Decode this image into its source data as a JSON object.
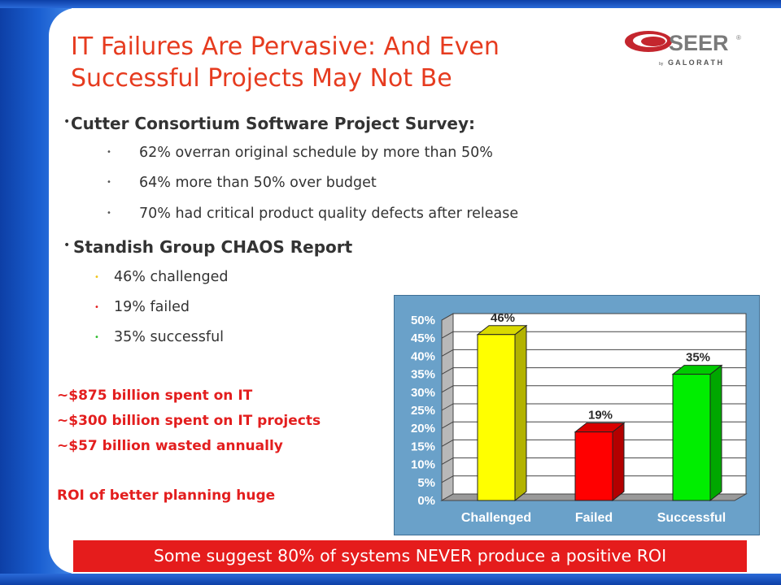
{
  "slide": {
    "title_line1": "IT Failures Are Pervasive: And Even",
    "title_line2": "Successful Projects May Not Be",
    "logo": {
      "name": "SEER",
      "reg": "®",
      "by": "by",
      "company": "G A L O R A T H"
    }
  },
  "cutter": {
    "heading": "Cutter Consortium Software Project Survey:",
    "items": [
      "62% overran original schedule by more than 50%",
      "64% more than 50% over budget",
      "70% had critical product quality defects after release"
    ]
  },
  "standish": {
    "heading": "Standish Group CHAOS Report",
    "items": [
      {
        "text": "46% challenged",
        "bullet_color": "#f0c419"
      },
      {
        "text": "19% failed",
        "bullet_color": "#e31e1e"
      },
      {
        "text": "35% successful",
        "bullet_color": "#2ebd2e"
      }
    ]
  },
  "spending": {
    "lines": [
      "~$875 billion spent on IT",
      "~$300 billion spent on IT projects",
      "~$57 billion wasted annually"
    ],
    "roi": "ROI of better planning huge"
  },
  "banner": {
    "text": "Some suggest 80% of systems NEVER produce a positive ROI"
  },
  "colors": {
    "title": "#e63b1f",
    "accent_red": "#e31e1e",
    "chart_bg": "#6aa1c9",
    "frame_blue": "#1a5fd1"
  },
  "chart_data": {
    "type": "bar",
    "categories": [
      "Challenged",
      "Failed",
      "Successful"
    ],
    "values": [
      46,
      19,
      35
    ],
    "data_labels": [
      "46%",
      "19%",
      "35%"
    ],
    "colors": [
      "#ffff00",
      "#ff0000",
      "#00ee00"
    ],
    "ylim": [
      0,
      50
    ],
    "ytick_values": [
      0,
      5,
      10,
      15,
      20,
      25,
      30,
      35,
      40,
      45,
      50
    ],
    "yticks": [
      "0%",
      "5%",
      "10%",
      "15%",
      "20%",
      "25%",
      "30%",
      "35%",
      "40%",
      "45%",
      "50%"
    ],
    "grid": true,
    "legend": "none",
    "title": "",
    "xlabel": "",
    "ylabel": ""
  }
}
